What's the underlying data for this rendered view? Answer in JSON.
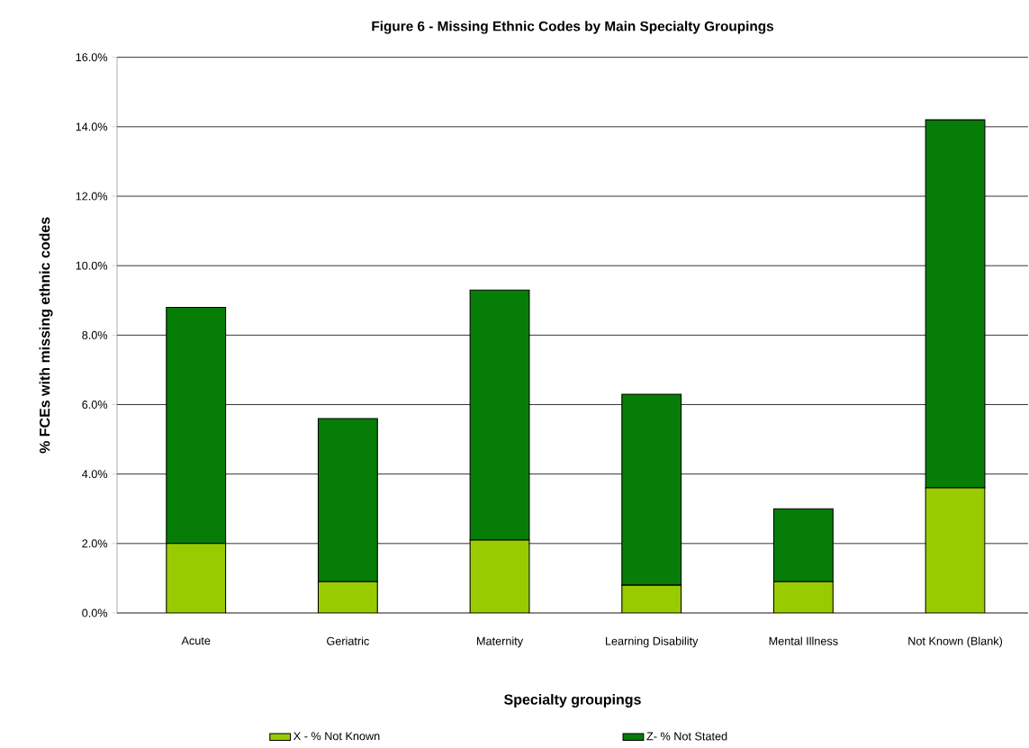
{
  "chart_data": {
    "type": "bar",
    "stacked": true,
    "title": "Figure 6 - Missing Ethnic Codes by Main Specialty Groupings",
    "xlabel": "Specialty groupings",
    "ylabel": "% FCEs with missing ethnic codes",
    "categories": [
      "Acute",
      "Geriatric",
      "Maternity",
      "Learning Disability",
      "Mental Illness",
      "Not Known (Blank)"
    ],
    "series": [
      {
        "name": "X - % Not Known",
        "color": "#99cc00",
        "values": [
          2.0,
          0.9,
          2.1,
          0.8,
          0.9,
          3.6
        ]
      },
      {
        "name": "Z- % Not Stated",
        "color": "#067d06",
        "values": [
          6.8,
          4.7,
          7.2,
          5.5,
          2.1,
          10.6
        ]
      }
    ],
    "ylim": [
      0,
      16
    ],
    "yticks": [
      {
        "value": 0,
        "label": "0.0%"
      },
      {
        "value": 2,
        "label": "2.0%"
      },
      {
        "value": 4,
        "label": "4.0%"
      },
      {
        "value": 6,
        "label": "6.0%"
      },
      {
        "value": 8,
        "label": "8.0%"
      },
      {
        "value": 10,
        "label": "10.0%"
      },
      {
        "value": 12,
        "label": "12.0%"
      },
      {
        "value": 14,
        "label": "14.0%"
      },
      {
        "value": 16,
        "label": "16.0%"
      }
    ],
    "grid": "y",
    "legend": "bottom"
  }
}
